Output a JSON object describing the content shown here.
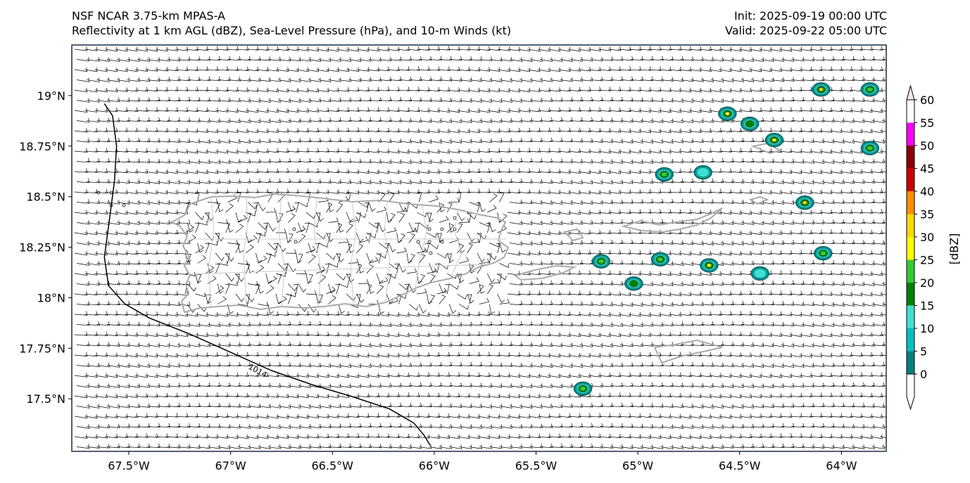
{
  "header": {
    "model": "NSF NCAR 3.75-km MPAS-A",
    "fields": "Reflectivity at 1 km AGL (dBZ), Sea-Level Pressure (hPa), and 10-m Winds (kt)",
    "init": "Init: 2025-09-19 00:00 UTC",
    "valid": "Valid: 2025-09-22 05:00 UTC"
  },
  "map": {
    "extent": {
      "lon": [
        -67.78,
        -63.78
      ],
      "lat": [
        17.24,
        19.25
      ]
    },
    "x_ticks": [
      {
        "lon": -67.5,
        "label": "67.5°W"
      },
      {
        "lon": -67.0,
        "label": "67°W"
      },
      {
        "lon": -66.5,
        "label": "66.5°W"
      },
      {
        "lon": -66.0,
        "label": "66°W"
      },
      {
        "lon": -65.5,
        "label": "65.5°W"
      },
      {
        "lon": -65.0,
        "label": "65°W"
      },
      {
        "lon": -64.5,
        "label": "64.5°W"
      },
      {
        "lon": -64.0,
        "label": "64°W"
      }
    ],
    "y_ticks": [
      {
        "lat": 19.0,
        "label": "19°N"
      },
      {
        "lat": 18.75,
        "label": "18.75°N"
      },
      {
        "lat": 18.5,
        "label": "18.5°N"
      },
      {
        "lat": 18.25,
        "label": "18.25°N"
      },
      {
        "lat": 18.0,
        "label": "18°N"
      },
      {
        "lat": 17.75,
        "label": "17.75°N"
      },
      {
        "lat": 17.5,
        "label": "17.5°N"
      }
    ],
    "isobar": {
      "label": "1014",
      "points": [
        [
          -67.62,
          18.96
        ],
        [
          -67.58,
          18.9
        ],
        [
          -67.56,
          18.75
        ],
        [
          -67.57,
          18.58
        ],
        [
          -67.6,
          18.35
        ],
        [
          -67.62,
          18.2
        ],
        [
          -67.6,
          18.06
        ],
        [
          -67.52,
          17.97
        ],
        [
          -67.4,
          17.9
        ],
        [
          -67.2,
          17.82
        ],
        [
          -67.0,
          17.73
        ],
        [
          -66.8,
          17.64
        ],
        [
          -66.6,
          17.57
        ],
        [
          -66.4,
          17.51
        ],
        [
          -66.22,
          17.45
        ],
        [
          -66.1,
          17.38
        ],
        [
          -66.05,
          17.32
        ],
        [
          -66.02,
          17.27
        ]
      ]
    },
    "reflectivity_cells": [
      {
        "lon": -64.56,
        "lat": 18.91,
        "peak": 25
      },
      {
        "lon": -64.45,
        "lat": 18.86,
        "peak": 15
      },
      {
        "lon": -64.33,
        "lat": 18.78,
        "peak": 25
      },
      {
        "lon": -64.1,
        "lat": 19.03,
        "peak": 30
      },
      {
        "lon": -63.86,
        "lat": 19.03,
        "peak": 20
      },
      {
        "lon": -63.86,
        "lat": 18.74,
        "peak": 20
      },
      {
        "lon": -64.87,
        "lat": 18.61,
        "peak": 20
      },
      {
        "lon": -64.68,
        "lat": 18.62,
        "peak": 10
      },
      {
        "lon": -64.18,
        "lat": 18.47,
        "peak": 30
      },
      {
        "lon": -64.09,
        "lat": 18.22,
        "peak": 20
      },
      {
        "lon": -65.18,
        "lat": 18.18,
        "peak": 20
      },
      {
        "lon": -64.89,
        "lat": 18.19,
        "peak": 20
      },
      {
        "lon": -64.65,
        "lat": 18.16,
        "peak": 25
      },
      {
        "lon": -65.02,
        "lat": 18.07,
        "peak": 15
      },
      {
        "lon": -64.4,
        "lat": 18.12,
        "peak": 10
      },
      {
        "lon": -65.27,
        "lat": 17.55,
        "peak": 20
      }
    ]
  },
  "colorbar": {
    "label": "[dBZ]",
    "levels": [
      0,
      5,
      10,
      15,
      20,
      25,
      30,
      35,
      40,
      45,
      50,
      55,
      60
    ],
    "colors": [
      "#008080",
      "#00c0c0",
      "#40e0d0",
      "#008000",
      "#32cd32",
      "#ffff00",
      "#ffd700",
      "#ff8c00",
      "#cc0000",
      "#8b0000",
      "#ff00ff"
    ],
    "top_color": "#fce4d8",
    "bottom_color": "#ffffff"
  }
}
